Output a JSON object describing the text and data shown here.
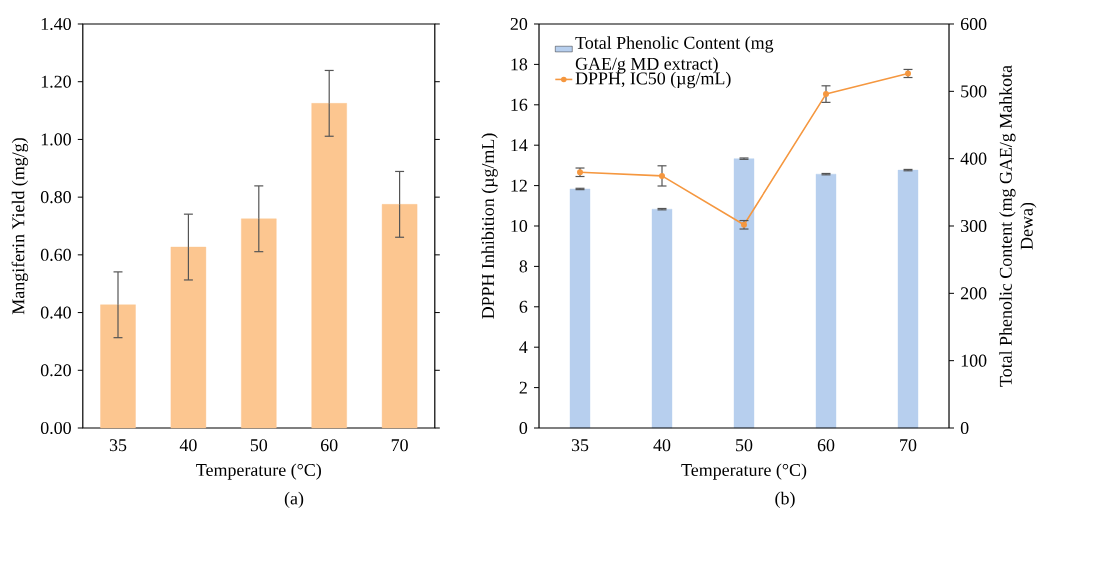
{
  "chart_data": [
    {
      "type": "bar",
      "categories": [
        "35",
        "40",
        "50",
        "60",
        "70"
      ],
      "values": [
        0.427,
        0.627,
        0.725,
        1.125,
        0.775
      ],
      "errors": [
        0.114,
        0.114,
        0.114,
        0.114,
        0.114
      ],
      "color": "#fcc690",
      "ylim": [
        0,
        1.4
      ],
      "yticks": [
        {
          "value": 0,
          "label": "0.00"
        },
        {
          "value": 0.2,
          "label": "0.20"
        },
        {
          "value": 0.4,
          "label": "0.40"
        },
        {
          "value": 0.6,
          "label": "0.60"
        },
        {
          "value": 0.8,
          "label": "0.80"
        },
        {
          "value": 1.0,
          "label": "1.00"
        },
        {
          "value": 1.2,
          "label": "1.20"
        },
        {
          "value": 1.4,
          "label": "1.40"
        }
      ],
      "xlabel": "Temperature (°C)",
      "ylabel": "Mangiferin Yield (mg/g)",
      "annotations": [
        "(a)"
      ]
    },
    {
      "type": "bar",
      "categories": [
        "35",
        "40",
        "50",
        "60",
        "70"
      ],
      "series": [
        {
          "name": "Total Phenolic Content (mg GAE/g MD extract)",
          "type": "bar",
          "axis": "y2",
          "color": "#b7cfee",
          "values": [
            355,
            325,
            400,
            377,
            383
          ],
          "errors": [
            1,
            1,
            1,
            1,
            1
          ]
        },
        {
          "name": "DPPH, IC50 (µg/mL)",
          "type": "line",
          "color": "#f5973f",
          "values": [
            12.66,
            12.48,
            10.06,
            16.53,
            17.55
          ],
          "errors": [
            0.21,
            0.5,
            0.21,
            0.41,
            0.2
          ]
        }
      ],
      "marker": "circle",
      "legend": "top left",
      "ylim": [
        0,
        20
      ],
      "yticks": [
        0,
        2,
        4,
        6,
        8,
        10,
        12,
        14,
        16,
        18,
        20
      ],
      "y2lim": [
        0,
        600
      ],
      "y2ticks": [
        0,
        100,
        200,
        300,
        400,
        500,
        600
      ],
      "xlabel": "Temperature (°C)",
      "ylabel": "DPPH Inhibition (µg/mL)",
      "y2label": "Total Phenolic Content (mg GAE/g Mahkota Dewa)",
      "annotations": [
        "(b)"
      ]
    }
  ]
}
